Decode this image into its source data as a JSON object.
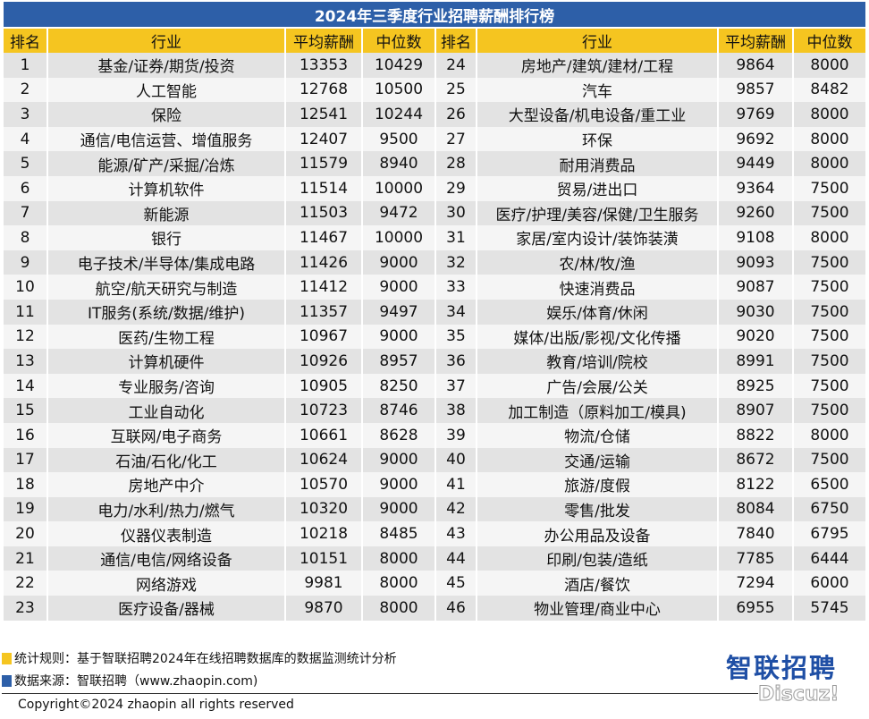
{
  "title": "2024年三季度行业招聘薪酬排行榜",
  "headers": [
    "排名",
    "行业",
    "平均薪酬",
    "中位数",
    "排名",
    "行业",
    "平均薪酬",
    "中位数"
  ],
  "rows": [
    {
      "left": [
        "1",
        "基金/证券/期货/投资",
        "13353",
        "10429"
      ],
      "right": [
        "24",
        "房地产/建筑/建材/工程",
        "9864",
        "8000"
      ]
    },
    {
      "left": [
        "2",
        "人工智能",
        "12768",
        "10500"
      ],
      "right": [
        "25",
        "汽车",
        "9857",
        "8482"
      ]
    },
    {
      "left": [
        "3",
        "保险",
        "12541",
        "10244"
      ],
      "right": [
        "26",
        "大型设备/机电设备/重工业",
        "9769",
        "8000"
      ]
    },
    {
      "left": [
        "4",
        "通信/电信运营、增值服务",
        "12407",
        "9500"
      ],
      "right": [
        "27",
        "环保",
        "9692",
        "8000"
      ]
    },
    {
      "left": [
        "5",
        "能源/矿产/采掘/冶炼",
        "11579",
        "8940"
      ],
      "right": [
        "28",
        "耐用消费品",
        "9449",
        "8000"
      ]
    },
    {
      "left": [
        "6",
        "计算机软件",
        "11514",
        "10000"
      ],
      "right": [
        "29",
        "贸易/进出口",
        "9364",
        "7500"
      ]
    },
    {
      "left": [
        "7",
        "新能源",
        "11503",
        "9472"
      ],
      "right": [
        "30",
        "医疗/护理/美容/保健/卫生服务",
        "9260",
        "7500"
      ]
    },
    {
      "left": [
        "8",
        "银行",
        "11467",
        "10000"
      ],
      "right": [
        "31",
        "家居/室内设计/装饰装潢",
        "9108",
        "8000"
      ]
    },
    {
      "left": [
        "9",
        "电子技术/半导体/集成电路",
        "11426",
        "9000"
      ],
      "right": [
        "32",
        "农/林/牧/渔",
        "9093",
        "7500"
      ]
    },
    {
      "left": [
        "10",
        "航空/航天研究与制造",
        "11412",
        "9000"
      ],
      "right": [
        "33",
        "快速消费品",
        "9087",
        "7500"
      ]
    },
    {
      "left": [
        "11",
        "IT服务(系统/数据/维护)",
        "11357",
        "9497"
      ],
      "right": [
        "34",
        "娱乐/体育/休闲",
        "9030",
        "7500"
      ]
    },
    {
      "left": [
        "12",
        "医药/生物工程",
        "10967",
        "9000"
      ],
      "right": [
        "35",
        "媒体/出版/影视/文化传播",
        "9020",
        "7500"
      ]
    },
    {
      "left": [
        "13",
        "计算机硬件",
        "10926",
        "8957"
      ],
      "right": [
        "36",
        "教育/培训/院校",
        "8991",
        "7500"
      ]
    },
    {
      "left": [
        "14",
        "专业服务/咨询",
        "10905",
        "8250"
      ],
      "right": [
        "37",
        "广告/会展/公关",
        "8925",
        "7500"
      ]
    },
    {
      "left": [
        "15",
        "工业自动化",
        "10723",
        "8746"
      ],
      "right": [
        "38",
        "加工制造（原料加工/模具)",
        "8907",
        "7500"
      ]
    },
    {
      "left": [
        "16",
        "互联网/电子商务",
        "10661",
        "8628"
      ],
      "right": [
        "39",
        "物流/仓储",
        "8822",
        "8000"
      ]
    },
    {
      "left": [
        "17",
        "石油/石化/化工",
        "10624",
        "9000"
      ],
      "right": [
        "40",
        "交通/运输",
        "8672",
        "7500"
      ]
    },
    {
      "left": [
        "18",
        "房地产中介",
        "10570",
        "9000"
      ],
      "right": [
        "41",
        "旅游/度假",
        "8122",
        "6500"
      ]
    },
    {
      "left": [
        "19",
        "电力/水利/热力/燃气",
        "10320",
        "9000"
      ],
      "right": [
        "42",
        "零售/批发",
        "8084",
        "6750"
      ]
    },
    {
      "left": [
        "20",
        "仪器仪表制造",
        "10218",
        "8485"
      ],
      "right": [
        "43",
        "办公用品及设备",
        "7840",
        "6795"
      ]
    },
    {
      "left": [
        "21",
        "通信/电信/网络设备",
        "10151",
        "8000"
      ],
      "right": [
        "44",
        "印刷/包装/造纸",
        "7785",
        "6444"
      ]
    },
    {
      "left": [
        "22",
        "网络游戏",
        "9981",
        "8000"
      ],
      "right": [
        "45",
        "酒店/餐饮",
        "7294",
        "6000"
      ]
    },
    {
      "left": [
        "23",
        "医疗设备/器械",
        "9870",
        "8000"
      ],
      "right": [
        "46",
        "物业管理/商业中心",
        "6955",
        "5745"
      ]
    }
  ],
  "footer": {
    "rule_note": "统计规则：基于智联招聘2024年在线招聘数据库的数据监测统计分析",
    "source_note": "数据来源：智联招聘（www.zhaopin.com)",
    "copyright": "Copyright©2024 zhaopin all rights reserved"
  },
  "brand": {
    "logo_text": "智联招聘",
    "watermark": "Discuz!"
  },
  "colors": {
    "title_bar": "#2d5fa8",
    "header_bg": "#f5c520",
    "row_odd": "#e3e3e3",
    "row_even": "#f5f5f5",
    "logo": "#1f4fa5"
  }
}
